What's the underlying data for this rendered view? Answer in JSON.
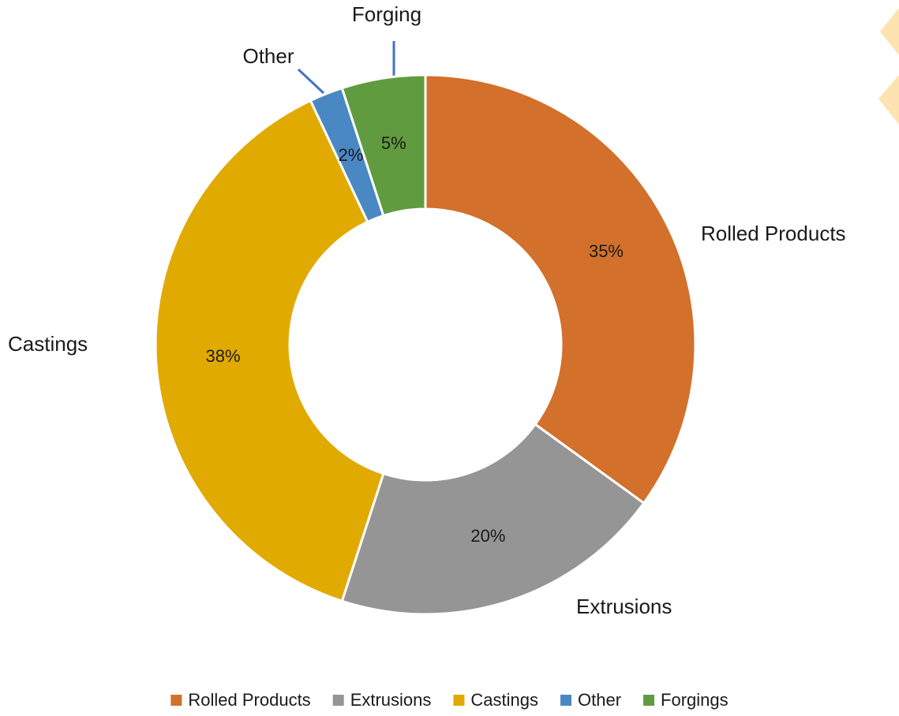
{
  "chart_data": {
    "type": "donut",
    "categories": [
      "Rolled Products",
      "Extrusions",
      "Castings",
      "Other",
      "Forgings"
    ],
    "labels": [
      "Rolled Products",
      "Extrusions",
      "Castings",
      "Other",
      "Forging"
    ],
    "values": [
      35,
      20,
      38,
      2,
      5
    ],
    "value_labels": [
      "35%",
      "20%",
      "38%",
      "2%",
      "5%"
    ],
    "colors": [
      "#d2702c",
      "#959595",
      "#e1aa00",
      "#4a88c4",
      "#619b3f"
    ],
    "legend": "bottom"
  }
}
